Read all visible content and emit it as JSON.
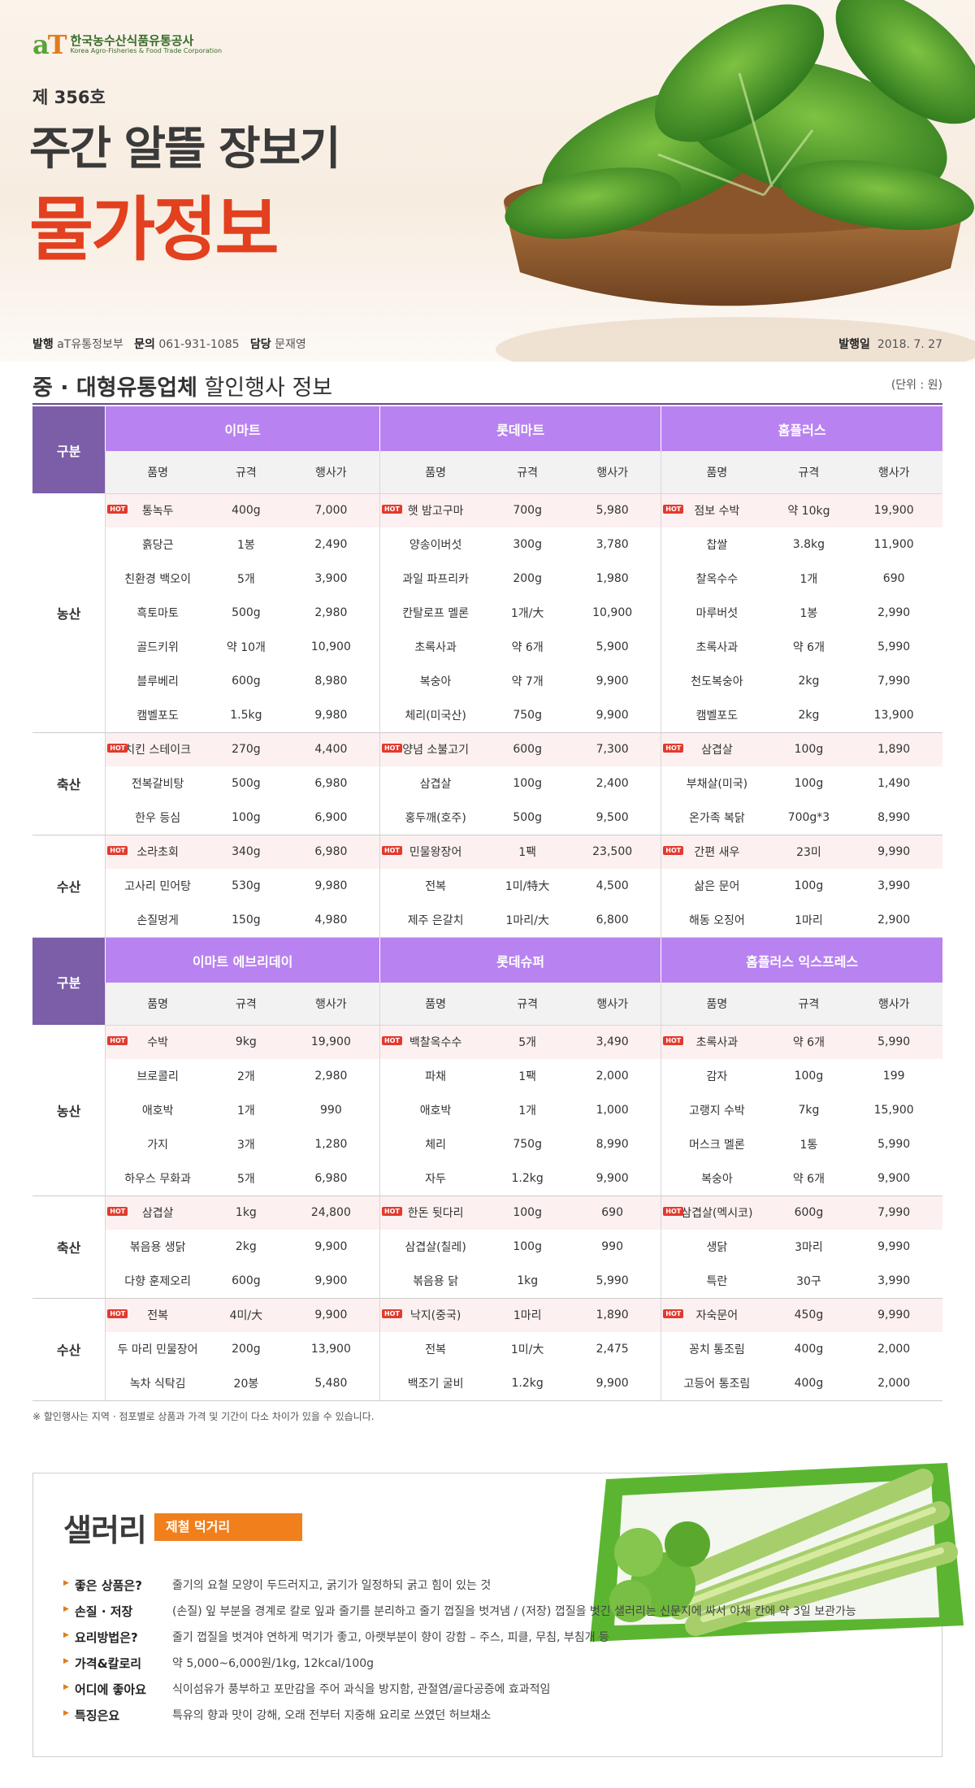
{
  "header": {
    "logo_ko": "한국농수산식품유통공사",
    "logo_en": "Korea Agro-Fisheries & Food Trade Corporation",
    "issue": "제 356호",
    "title_main": "주간 알뜰 장보기",
    "title_sub": "물가정보",
    "publisher_label": "발행",
    "publisher": "aT유통정보부",
    "contact_label": "문의",
    "contact": "061-931-1085",
    "manager_label": "담당",
    "manager": "문재영",
    "date_label": "발행일",
    "date": "2018. 7. 27"
  },
  "section": {
    "title_bold": "중 · 대형유통업체",
    "title_rest": " 할인행사 정보",
    "unit": "(단위 : 원)"
  },
  "labels": {
    "gubun": "구분",
    "col_name": "품명",
    "col_spec": "규격",
    "col_price": "행사가",
    "hot": "HOT"
  },
  "tables": [
    {
      "stores": [
        "이마트",
        "롯데마트",
        "홈플러스"
      ],
      "categories": [
        {
          "name": "농산",
          "rows": [
            {
              "hot": true,
              "items": [
                [
                  "통녹두",
                  "400g",
                  "7,000"
                ],
                [
                  "햇 밤고구마",
                  "700g",
                  "5,980"
                ],
                [
                  "점보 수박",
                  "약 10kg",
                  "19,900"
                ]
              ]
            },
            {
              "hot": false,
              "items": [
                [
                  "흙당근",
                  "1봉",
                  "2,490"
                ],
                [
                  "양송이버섯",
                  "300g",
                  "3,780"
                ],
                [
                  "찹쌀",
                  "3.8kg",
                  "11,900"
                ]
              ]
            },
            {
              "hot": false,
              "items": [
                [
                  "친환경 백오이",
                  "5개",
                  "3,900"
                ],
                [
                  "과일 파프리카",
                  "200g",
                  "1,980"
                ],
                [
                  "찰옥수수",
                  "1개",
                  "690"
                ]
              ]
            },
            {
              "hot": false,
              "items": [
                [
                  "흑토마토",
                  "500g",
                  "2,980"
                ],
                [
                  "칸탈로프 멜론",
                  "1개/大",
                  "10,900"
                ],
                [
                  "마루버섯",
                  "1봉",
                  "2,990"
                ]
              ]
            },
            {
              "hot": false,
              "items": [
                [
                  "골드키위",
                  "약 10개",
                  "10,900"
                ],
                [
                  "초록사과",
                  "약 6개",
                  "5,900"
                ],
                [
                  "초록사과",
                  "약 6개",
                  "5,990"
                ]
              ]
            },
            {
              "hot": false,
              "items": [
                [
                  "블루베리",
                  "600g",
                  "8,980"
                ],
                [
                  "복숭아",
                  "약 7개",
                  "9,900"
                ],
                [
                  "천도복숭아",
                  "2kg",
                  "7,990"
                ]
              ]
            },
            {
              "hot": false,
              "items": [
                [
                  "캠벨포도",
                  "1.5kg",
                  "9,980"
                ],
                [
                  "체리(미국산)",
                  "750g",
                  "9,900"
                ],
                [
                  "캠벨포도",
                  "2kg",
                  "13,900"
                ]
              ]
            }
          ]
        },
        {
          "name": "축산",
          "rows": [
            {
              "hot": true,
              "items": [
                [
                  "치킨 스테이크",
                  "270g",
                  "4,400"
                ],
                [
                  "양념 소불고기",
                  "600g",
                  "7,300"
                ],
                [
                  "삼겹살",
                  "100g",
                  "1,890"
                ]
              ]
            },
            {
              "hot": false,
              "items": [
                [
                  "전복갈비탕",
                  "500g",
                  "6,980"
                ],
                [
                  "삼겹살",
                  "100g",
                  "2,400"
                ],
                [
                  "부채살(미국)",
                  "100g",
                  "1,490"
                ]
              ]
            },
            {
              "hot": false,
              "items": [
                [
                  "한우 등심",
                  "100g",
                  "6,900"
                ],
                [
                  "홍두깨(호주)",
                  "500g",
                  "9,500"
                ],
                [
                  "온가족 복닭",
                  "700g*3",
                  "8,990"
                ]
              ]
            }
          ]
        },
        {
          "name": "수산",
          "rows": [
            {
              "hot": true,
              "items": [
                [
                  "소라초회",
                  "340g",
                  "6,980"
                ],
                [
                  "민물왕장어",
                  "1팩",
                  "23,500"
                ],
                [
                  "간편 새우",
                  "23미",
                  "9,990"
                ]
              ]
            },
            {
              "hot": false,
              "items": [
                [
                  "고사리 민어탕",
                  "530g",
                  "9,980"
                ],
                [
                  "전복",
                  "1미/特大",
                  "4,500"
                ],
                [
                  "삶은 문어",
                  "100g",
                  "3,990"
                ]
              ]
            },
            {
              "hot": false,
              "items": [
                [
                  "손질멍게",
                  "150g",
                  "4,980"
                ],
                [
                  "제주 은갈치",
                  "1마리/大",
                  "6,800"
                ],
                [
                  "해동 오징어",
                  "1마리",
                  "2,900"
                ]
              ]
            }
          ]
        }
      ]
    },
    {
      "stores": [
        "이마트 에브리데이",
        "롯데슈퍼",
        "홈플러스 익스프레스"
      ],
      "categories": [
        {
          "name": "농산",
          "rows": [
            {
              "hot": true,
              "items": [
                [
                  "수박",
                  "9kg",
                  "19,900"
                ],
                [
                  "백찰옥수수",
                  "5개",
                  "3,490"
                ],
                [
                  "초록사과",
                  "약 6개",
                  "5,990"
                ]
              ]
            },
            {
              "hot": false,
              "items": [
                [
                  "브로콜리",
                  "2개",
                  "2,980"
                ],
                [
                  "파채",
                  "1팩",
                  "2,000"
                ],
                [
                  "감자",
                  "100g",
                  "199"
                ]
              ]
            },
            {
              "hot": false,
              "items": [
                [
                  "애호박",
                  "1개",
                  "990"
                ],
                [
                  "애호박",
                  "1개",
                  "1,000"
                ],
                [
                  "고랭지 수박",
                  "7kg",
                  "15,900"
                ]
              ]
            },
            {
              "hot": false,
              "items": [
                [
                  "가지",
                  "3개",
                  "1,280"
                ],
                [
                  "체리",
                  "750g",
                  "8,990"
                ],
                [
                  "머스크 멜론",
                  "1통",
                  "5,990"
                ]
              ]
            },
            {
              "hot": false,
              "items": [
                [
                  "하우스 무화과",
                  "5개",
                  "6,980"
                ],
                [
                  "자두",
                  "1.2kg",
                  "9,900"
                ],
                [
                  "복숭아",
                  "약 6개",
                  "9,900"
                ]
              ]
            }
          ]
        },
        {
          "name": "축산",
          "rows": [
            {
              "hot": true,
              "items": [
                [
                  "삼겹살",
                  "1kg",
                  "24,800"
                ],
                [
                  "한돈 뒷다리",
                  "100g",
                  "690"
                ],
                [
                  "삼겹살(멕시코)",
                  "600g",
                  "7,990"
                ]
              ]
            },
            {
              "hot": false,
              "items": [
                [
                  "볶음용 생닭",
                  "2kg",
                  "9,900"
                ],
                [
                  "삼겹살(칠레)",
                  "100g",
                  "990"
                ],
                [
                  "생닭",
                  "3마리",
                  "9,990"
                ]
              ]
            },
            {
              "hot": false,
              "items": [
                [
                  "다향 훈제오리",
                  "600g",
                  "9,900"
                ],
                [
                  "볶음용 닭",
                  "1kg",
                  "5,990"
                ],
                [
                  "특란",
                  "30구",
                  "3,990"
                ]
              ]
            }
          ]
        },
        {
          "name": "수산",
          "rows": [
            {
              "hot": true,
              "items": [
                [
                  "전복",
                  "4미/大",
                  "9,900"
                ],
                [
                  "낙지(중국)",
                  "1마리",
                  "1,890"
                ],
                [
                  "자숙문어",
                  "450g",
                  "9,990"
                ]
              ]
            },
            {
              "hot": false,
              "items": [
                [
                  "두 마리 민물장어",
                  "200g",
                  "13,900"
                ],
                [
                  "전복",
                  "1미/大",
                  "2,475"
                ],
                [
                  "꽁치 통조림",
                  "400g",
                  "2,000"
                ]
              ]
            },
            {
              "hot": false,
              "items": [
                [
                  "녹차 식탁김",
                  "20봉",
                  "5,480"
                ],
                [
                  "백조기 굴비",
                  "1.2kg",
                  "9,900"
                ],
                [
                  "고등어 통조림",
                  "400g",
                  "2,000"
                ]
              ]
            }
          ]
        }
      ]
    }
  ],
  "note": "※ 할인행사는 지역 · 점포별로 상품과 가격 및 기간이 다소 차이가 있을 수 있습니다.",
  "celery": {
    "title": "샐러리",
    "tag": "제철 먹거리",
    "items": [
      {
        "label": "좋은 상품은?",
        "text": "줄기의 요철 모양이 두드러지고, 굵기가 일정하되 굵고 힘이 있는 것"
      },
      {
        "label": "손질 · 저장",
        "text": "(손질) 잎 부분을 경계로 칼로 잎과 줄기를 분리하고 줄기 껍질을 벗겨냄 / (저장) 껍질을 벗긴 샐러리는 신문지에 싸서 야채 칸에 약 3일 보관가능"
      },
      {
        "label": "요리방법은?",
        "text": "줄기 껍질을 벗겨야 연하게 먹기가 좋고, 아랫부분이 향이 강함 – 주스, 피클, 무침, 부침개 등"
      },
      {
        "label": "가격&칼로리",
        "text": "약 5,000~6,000원/1kg, 12kcal/100g"
      },
      {
        "label": "어디에 좋아요",
        "text": "식이섬유가 풍부하고 포만감을 주어 과식을 방지함, 관절염/골다공증에 효과적임"
      },
      {
        "label": "특징은요",
        "text": "특유의 향과 맛이 강해, 오래 전부터 지중해 요리로 쓰였던 허브채소"
      }
    ]
  },
  "colors": {
    "accent_purple": "#b883f0",
    "gubun_purple": "#7b5ea7",
    "title_red": "#e2401f",
    "tag_orange": "#f07f1c",
    "hot_red": "#e23a2e"
  }
}
